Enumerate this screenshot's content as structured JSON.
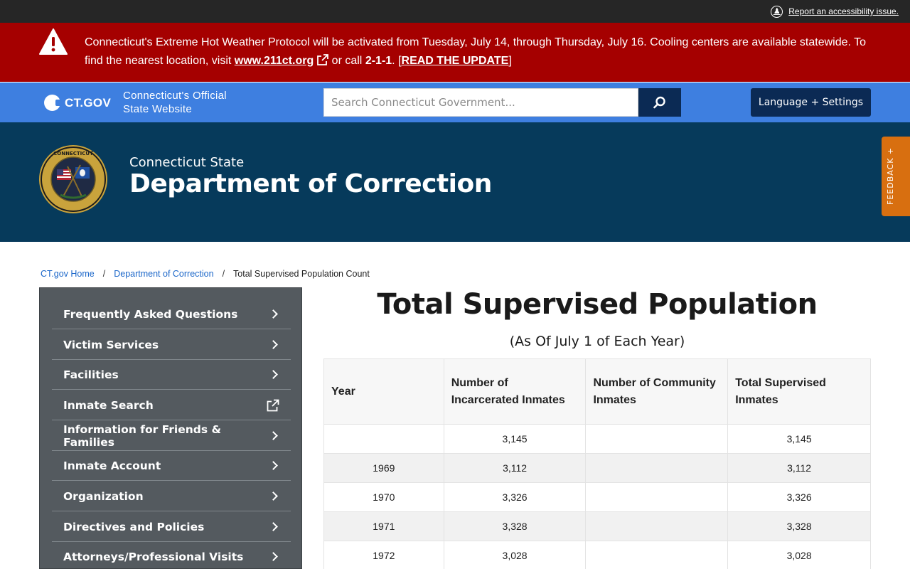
{
  "utility": {
    "accessibility_link": "Report an accessibility issue."
  },
  "alert": {
    "text_before": "Connecticut's Extreme Hot Weather Protocol will be activated from Tuesday, July 14, through Thursday, July 16. Cooling centers are available statewide. To find the nearest location, visit ",
    "link_label": "www.211ct.org",
    "text_middle": " or call ",
    "phone": "2-1-1",
    "text_after": ". [",
    "update_label": "READ THE UPDATE",
    "text_end": "]"
  },
  "ctgov": {
    "logo_text": "CT.GOV",
    "tagline_line1": "Connecticut's Official",
    "tagline_line2": "State Website",
    "search_placeholder": "Search Connecticut Government...",
    "language_button": "Language + Settings"
  },
  "agency": {
    "subtitle": "Connecticut State",
    "title": "Department of Correction",
    "feedback_label": "FEEDBACK +"
  },
  "breadcrumb": {
    "home": "CT.gov Home",
    "dept": "Department of Correction",
    "current": "Total Supervised Population Count",
    "separator": "/"
  },
  "sidebar": {
    "items": [
      {
        "label": "Frequently Asked Questions",
        "icon": "chevron-right-icon"
      },
      {
        "label": "Victim Services",
        "icon": "chevron-right-icon"
      },
      {
        "label": "Facilities",
        "icon": "chevron-right-icon"
      },
      {
        "label": "Inmate Search",
        "icon": "external-link-icon"
      },
      {
        "label": "Information for Friends & Families",
        "icon": "chevron-right-icon"
      },
      {
        "label": "Inmate Account",
        "icon": "chevron-right-icon"
      },
      {
        "label": "Organization",
        "icon": "chevron-right-icon"
      },
      {
        "label": "Directives and Policies",
        "icon": "chevron-right-icon"
      },
      {
        "label": "Attorneys/Professional Visits",
        "icon": "chevron-right-icon"
      }
    ]
  },
  "main": {
    "title": "Total Supervised Population",
    "subtitle": "(As Of July 1 of Each Year)",
    "table": {
      "headers": [
        "Year",
        "Number of Incarcerated Inmates",
        "Number of Community Inmates",
        "Total Supervised Inmates"
      ],
      "rows": [
        [
          "",
          "3,145",
          "",
          "3,145"
        ],
        [
          "1969",
          "3,112",
          "",
          "3,112"
        ],
        [
          "1970",
          "3,326",
          "",
          "3,326"
        ],
        [
          "1971",
          "3,328",
          "",
          "3,328"
        ],
        [
          "1972",
          "3,028",
          "",
          "3,028"
        ]
      ]
    }
  },
  "colors": {
    "alert_bg": "#a50000",
    "ctgov_bar": "#3e7fe0",
    "dark_navy": "#0b2a54",
    "agency_bg": "#063a5b",
    "sidebar_bg": "#545a5f",
    "feedback_bg": "#d86f10",
    "link": "#1a66c9"
  }
}
